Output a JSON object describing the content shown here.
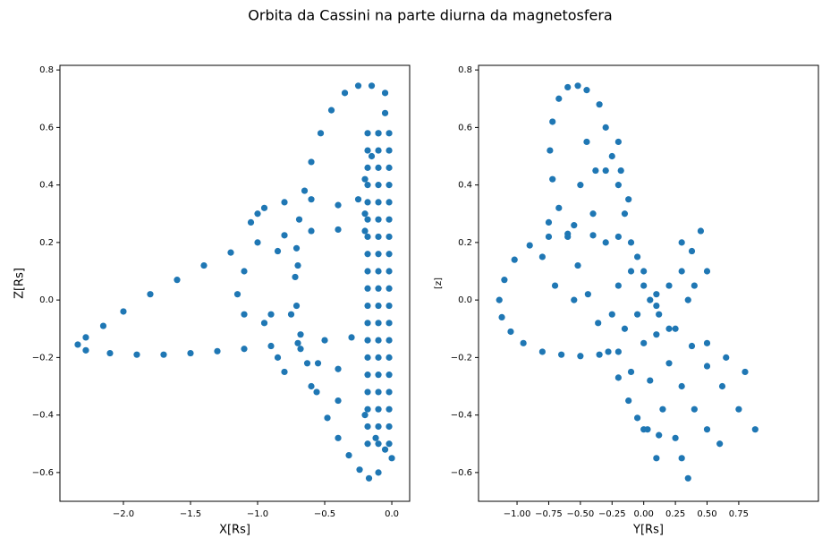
{
  "title": "Orbita da Cassini na parte diurna da magnetosfera",
  "chart_data": [
    {
      "type": "scatter",
      "xlabel": "X[Rs]",
      "ylabel": "Z[Rs]",
      "color": "#1f77b4",
      "xlim": [
        -2.473,
        0.133
      ],
      "ylim": [
        -0.7,
        0.816
      ],
      "xticks": [
        {
          "value": -2.0,
          "label": "−2.0"
        },
        {
          "value": -1.5,
          "label": "−1.5"
        },
        {
          "value": -1.0,
          "label": "−1.0"
        },
        {
          "value": -0.5,
          "label": "−0.5"
        },
        {
          "value": 0,
          "label": "0.0"
        }
      ],
      "yticks": [
        {
          "value": -0.6,
          "label": "−0.6"
        },
        {
          "value": -0.4,
          "label": "−0.4"
        },
        {
          "value": -0.2,
          "label": "−0.2"
        },
        {
          "value": 0,
          "label": "0.0"
        },
        0.2,
        0.4,
        0.6,
        0.8
      ],
      "x": [
        -0.2,
        -0.4,
        -0.6,
        -0.8,
        -1.0,
        -1.2,
        -1.4,
        -1.6,
        -1.8,
        -2.0,
        -2.15,
        -2.28,
        -2.34,
        -2.28,
        -2.1,
        -1.9,
        -1.7,
        -1.5,
        -1.3,
        -1.1,
        -0.9,
        -0.7,
        -0.5,
        -0.3,
        -0.05,
        -0.15,
        -0.25,
        -0.35,
        -0.45,
        -0.53,
        -0.6,
        -0.65,
        -0.69,
        -0.71,
        -0.72,
        -0.71,
        -0.68,
        -0.63,
        -0.56,
        -0.48,
        -0.4,
        -0.32,
        -0.24,
        -0.17,
        -0.1,
        -1.0,
        -1.05,
        -0.95,
        -0.8,
        -0.6,
        -0.4,
        -0.2,
        -0.85,
        -0.7,
        -1.1,
        -1.15,
        -1.1,
        -0.95,
        -0.8,
        -0.6,
        -0.4,
        -0.2,
        -0.9,
        -0.85,
        -0.75,
        -0.68,
        -0.55,
        -0.4,
        -0.18,
        -0.18,
        -0.18,
        -0.18,
        -0.18,
        -0.18,
        -0.18,
        -0.18,
        -0.18,
        -0.18,
        -0.18,
        -0.18,
        -0.18,
        -0.18,
        -0.18,
        -0.18,
        -0.18,
        -0.18,
        -0.18,
        -0.1,
        -0.1,
        -0.1,
        -0.1,
        -0.1,
        -0.1,
        -0.1,
        -0.1,
        -0.1,
        -0.1,
        -0.1,
        -0.1,
        -0.1,
        -0.1,
        -0.1,
        -0.1,
        -0.1,
        -0.1,
        -0.1,
        -0.02,
        -0.02,
        -0.02,
        -0.02,
        -0.02,
        -0.02,
        -0.02,
        -0.02,
        -0.02,
        -0.02,
        -0.02,
        -0.02,
        -0.02,
        -0.02,
        -0.02,
        -0.02,
        -0.02,
        -0.02,
        -0.02,
        -0.05,
        -0.1,
        -0.15,
        -0.2,
        -0.25,
        0.0,
        -0.05,
        -0.12
      ],
      "values": [
        0.24,
        0.245,
        0.24,
        0.225,
        0.2,
        0.165,
        0.12,
        0.07,
        0.02,
        -0.04,
        -0.09,
        -0.13,
        -0.155,
        -0.175,
        -0.185,
        -0.19,
        -0.19,
        -0.185,
        -0.178,
        -0.17,
        -0.16,
        -0.15,
        -0.14,
        -0.13,
        0.72,
        0.745,
        0.745,
        0.72,
        0.66,
        0.58,
        0.48,
        0.38,
        0.28,
        0.18,
        0.08,
        -0.02,
        -0.12,
        -0.22,
        -0.32,
        -0.41,
        -0.48,
        -0.54,
        -0.59,
        -0.62,
        -0.6,
        0.3,
        0.27,
        0.32,
        0.34,
        0.35,
        0.33,
        0.3,
        0.17,
        0.12,
        0.1,
        0.02,
        -0.05,
        -0.08,
        -0.25,
        -0.3,
        -0.35,
        -0.4,
        -0.05,
        -0.2,
        -0.05,
        -0.17,
        -0.22,
        -0.24,
        -0.5,
        -0.44,
        -0.38,
        -0.32,
        -0.26,
        -0.2,
        -0.14,
        -0.08,
        -0.02,
        0.04,
        0.1,
        0.16,
        0.22,
        0.28,
        0.34,
        0.4,
        0.46,
        0.52,
        0.58,
        -0.5,
        -0.44,
        -0.38,
        -0.32,
        -0.26,
        -0.2,
        -0.14,
        -0.08,
        -0.02,
        0.04,
        0.1,
        0.16,
        0.22,
        0.28,
        0.34,
        0.4,
        0.46,
        0.52,
        0.58,
        -0.5,
        -0.44,
        -0.38,
        -0.32,
        -0.26,
        -0.2,
        -0.14,
        -0.08,
        -0.02,
        0.04,
        0.1,
        0.16,
        0.22,
        0.28,
        0.34,
        0.4,
        0.46,
        0.52,
        0.58,
        0.65,
        0.58,
        0.5,
        0.42,
        0.35,
        -0.55,
        -0.52,
        -0.48
      ]
    },
    {
      "type": "scatter",
      "xlabel": "Y[Rs]",
      "ylabel": "[z]",
      "color": "#1f77b4",
      "xlim": [
        -1.304,
        1.379
      ],
      "ylim": [
        -0.7,
        0.816
      ],
      "xticks": [
        {
          "value": -1.0,
          "label": "−1.00"
        },
        {
          "value": -0.75,
          "label": "−0.75"
        },
        {
          "value": -0.5,
          "label": "−0.50"
        },
        {
          "value": -0.25,
          "label": "−0.25"
        },
        {
          "value": 0,
          "label": "0.00"
        },
        0.25,
        {
          "value": 0.5,
          "label": "0.50"
        },
        0.75
      ],
      "yticks": [
        {
          "value": -0.6,
          "label": "−0.6"
        },
        {
          "value": -0.4,
          "label": "−0.4"
        },
        {
          "value": -0.2,
          "label": "−0.2"
        },
        {
          "value": 0,
          "label": "0.0"
        },
        0.2,
        0.4,
        0.6,
        0.8
      ],
      "x": [
        -0.2,
        -0.4,
        -0.6,
        -0.75,
        -0.9,
        -1.02,
        -1.1,
        -1.14,
        -1.12,
        -1.05,
        -0.95,
        -0.8,
        -0.65,
        -0.5,
        -0.35,
        -0.2,
        -0.45,
        -0.52,
        -0.6,
        -0.67,
        -0.72,
        -0.74,
        -0.72,
        -0.67,
        -0.6,
        -0.52,
        -0.44,
        -0.36,
        -0.28,
        -0.2,
        -0.12,
        -0.05,
        0.03,
        0.12,
        -0.75,
        -0.55,
        -0.8,
        -0.7,
        -0.55,
        -0.35,
        -0.3,
        -0.25,
        -0.2,
        -0.15,
        -0.1,
        -0.5,
        -0.4,
        -0.3,
        -0.2,
        -0.18,
        -0.12,
        -0.45,
        -0.38,
        0.45,
        0.38,
        0.3,
        0.2,
        0.1,
        0.5,
        0.4,
        -0.3,
        0.3,
        0.35,
        0.88,
        0.75,
        0.62,
        0.5,
        0.38,
        0.25,
        0.12,
        0.8,
        0.65,
        0.5,
        0.6,
        0.5,
        0.4,
        0.3,
        0.2,
        0.35,
        0.3,
        0.25,
        0.15,
        0.05,
        0.1,
        0.0,
        -0.1,
        0.0,
        0.05,
        -0.05,
        -0.15,
        0.0,
        -0.1,
        0.1,
        -0.2,
        0.0,
        0.1,
        -0.05,
        -0.25,
        0.2
      ],
      "values": [
        0.22,
        0.225,
        0.23,
        0.22,
        0.19,
        0.14,
        0.07,
        0.0,
        -0.06,
        -0.11,
        -0.15,
        -0.18,
        -0.19,
        -0.195,
        -0.19,
        -0.18,
        0.73,
        0.745,
        0.74,
        0.7,
        0.62,
        0.52,
        0.42,
        0.32,
        0.22,
        0.12,
        0.02,
        -0.08,
        -0.18,
        -0.27,
        -0.35,
        -0.41,
        -0.45,
        -0.47,
        0.27,
        0.26,
        0.15,
        0.05,
        0.0,
        0.68,
        0.6,
        0.5,
        0.4,
        0.3,
        0.2,
        0.4,
        0.3,
        0.2,
        0.55,
        0.45,
        0.35,
        0.55,
        0.45,
        0.24,
        0.17,
        0.1,
        0.05,
        0.02,
        0.1,
        0.05,
        0.45,
        0.2,
        0.0,
        -0.45,
        -0.38,
        -0.3,
        -0.23,
        -0.16,
        -0.1,
        -0.05,
        -0.25,
        -0.2,
        -0.15,
        -0.5,
        -0.45,
        -0.38,
        -0.3,
        -0.22,
        -0.62,
        -0.55,
        -0.48,
        -0.38,
        -0.28,
        -0.55,
        -0.45,
        0.1,
        0.1,
        0.0,
        -0.05,
        -0.1,
        -0.15,
        -0.25,
        -0.12,
        0.05,
        0.05,
        -0.02,
        0.15,
        -0.05,
        -0.1
      ]
    }
  ]
}
